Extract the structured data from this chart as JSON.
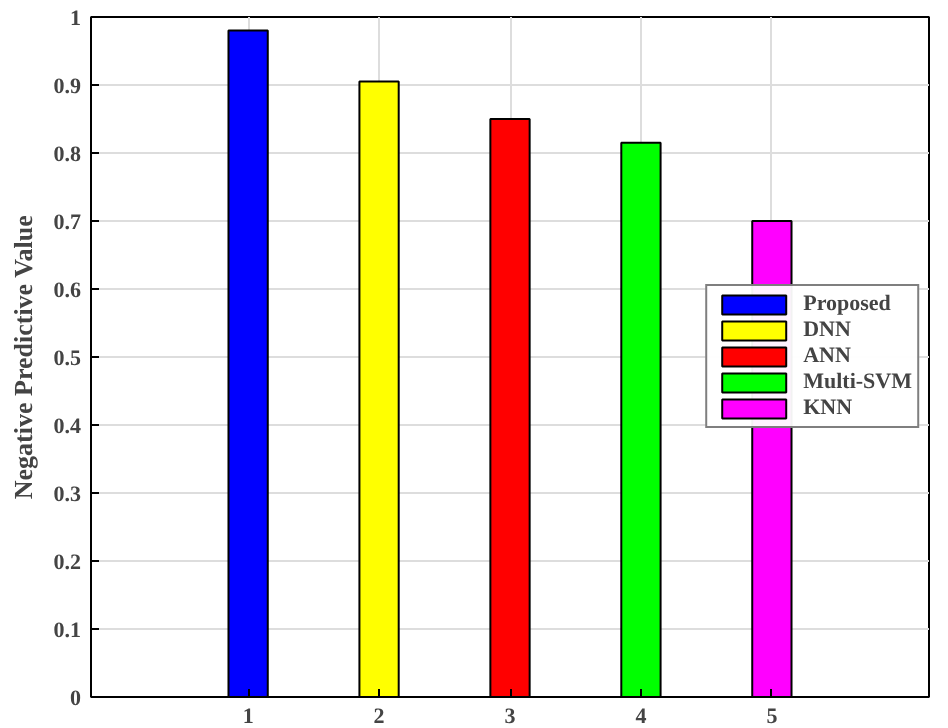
{
  "chart_data": {
    "type": "bar",
    "ylabel": "Negative Predictive Value",
    "categories": [
      "1",
      "2",
      "3",
      "4",
      "5"
    ],
    "series": [
      {
        "name": "Proposed",
        "color": "#0000ff",
        "values": [
          0.98,
          null,
          null,
          null,
          null
        ]
      },
      {
        "name": "DNN",
        "color": "#ffff00",
        "values": [
          null,
          0.905,
          null,
          null,
          null
        ]
      },
      {
        "name": "ANN",
        "color": "#ff0000",
        "values": [
          null,
          null,
          0.85,
          null,
          null
        ]
      },
      {
        "name": "Multi-SVM",
        "color": "#00ff00",
        "values": [
          null,
          null,
          null,
          0.815,
          null
        ]
      },
      {
        "name": "KNN",
        "color": "#ff00ff",
        "values": [
          null,
          null,
          null,
          null,
          0.7
        ]
      }
    ],
    "ylim": [
      0,
      1
    ],
    "yticks": [
      0,
      0.1,
      0.2,
      0.3,
      0.4,
      0.5,
      0.6,
      0.7,
      0.8,
      0.9,
      1
    ],
    "grid": true,
    "legend": "right"
  }
}
